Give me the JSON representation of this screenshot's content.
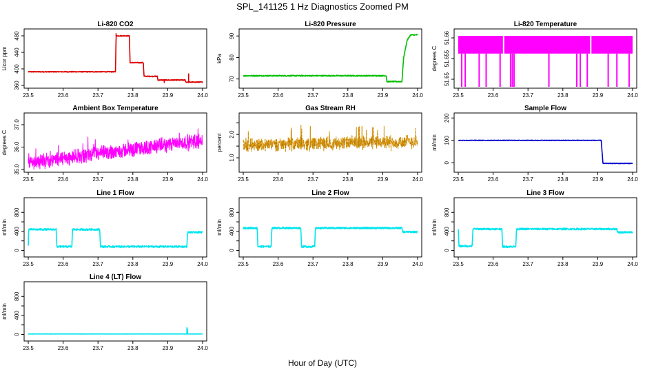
{
  "figure": {
    "title": "SPL_141125  1 Hz Diagnostics Zoomed PM",
    "xlabel": "Hour of Day (UTC)"
  },
  "chart_data": [
    {
      "type": "line",
      "title": "Li-820 CO2",
      "ylabel": "Licor ppm",
      "color": "#dd0000",
      "xlim": [
        23.5,
        24.0
      ],
      "ylim": [
        360,
        490
      ],
      "yticks": [
        360,
        400,
        440,
        480
      ],
      "xticks": [
        23.5,
        23.6,
        23.7,
        23.8,
        23.9,
        24.0
      ],
      "x": [
        23.5,
        23.75,
        23.752,
        23.79,
        23.792,
        23.83,
        23.832,
        23.87,
        23.872,
        23.95,
        23.952,
        24.0
      ],
      "y": [
        393,
        393,
        480,
        480,
        415,
        415,
        382,
        382,
        373,
        373,
        368,
        368
      ],
      "noise": 1,
      "spikes": [
        [
          23.66,
          395
        ],
        [
          23.752,
          486
        ],
        [
          23.89,
          366
        ],
        [
          23.96,
          389
        ]
      ]
    },
    {
      "type": "line",
      "title": "Li-820 Pressure",
      "ylabel": "kPa",
      "color": "#00c000",
      "xlim": [
        23.5,
        24.0
      ],
      "ylim": [
        67,
        92
      ],
      "yticks": [
        70,
        80,
        90
      ],
      "xticks": [
        23.5,
        23.6,
        23.7,
        23.8,
        23.9,
        24.0
      ],
      "x": [
        23.5,
        23.91,
        23.912,
        23.955,
        23.96,
        23.97,
        23.98,
        24.0
      ],
      "y": [
        71.5,
        71.5,
        68.8,
        68.8,
        80,
        88,
        90.5,
        90.5
      ],
      "noise": 0.25,
      "spikes": []
    },
    {
      "type": "band",
      "title": "Li-820 Temperature",
      "ylabel": "degrees C",
      "color": "#ff00ff",
      "xlim": [
        23.5,
        24.0
      ],
      "ylim": [
        51.6485,
        51.6615
      ],
      "yticks": [
        51.65,
        51.655,
        51.66
      ],
      "ytick_labels": [
        "51.65",
        "51.655",
        "51.66"
      ],
      "xticks": [
        23.5,
        23.6,
        23.7,
        23.8,
        23.9,
        24.0
      ],
      "band": [
        51.6562,
        51.6605
      ],
      "gaps": [
        23.63,
        23.88
      ],
      "drops": [
        23.51,
        23.52,
        23.56,
        23.58,
        23.62,
        23.65,
        23.655,
        23.66,
        23.76,
        23.84,
        23.85,
        23.87,
        23.93,
        23.955,
        23.99
      ]
    },
    {
      "type": "line",
      "title": "Ambient Box Temperature",
      "ylabel": "degrees C",
      "color": "#ff00ff",
      "xlim": [
        23.5,
        24.0
      ],
      "ylim": [
        35.0,
        37.4
      ],
      "yticks": [
        35.0,
        36.0,
        37.0
      ],
      "ytick_labels": [
        "35.0",
        "36.0",
        "37.0"
      ],
      "xticks": [
        23.5,
        23.6,
        23.7,
        23.8,
        23.9,
        24.0
      ],
      "x": [
        23.5,
        23.6,
        23.7,
        23.8,
        23.9,
        24.0
      ],
      "y": [
        35.3,
        35.5,
        35.7,
        35.9,
        36.1,
        36.3
      ],
      "noise": 0.35,
      "dense": true,
      "spikes": []
    },
    {
      "type": "line",
      "title": "Gas Stream RH",
      "ylabel": "percent",
      "color": "#e69b00",
      "xlim": [
        23.5,
        24.0
      ],
      "ylim": [
        0.5,
        2.8
      ],
      "yticks": [
        1.0,
        1.5,
        2.0,
        2.5
      ],
      "ytick_labels": [
        "1.0",
        "",
        "2.0",
        ""
      ],
      "xticks": [
        23.5,
        23.6,
        23.7,
        23.8,
        23.9,
        24.0
      ],
      "x": [
        23.5,
        24.0
      ],
      "y": [
        1.55,
        1.7
      ],
      "noise": 0.3,
      "dense": true,
      "dotted": true,
      "spikes": []
    },
    {
      "type": "line",
      "title": "Sample Flow",
      "ylabel": "ml/min",
      "color": "#0000cc",
      "xlim": [
        23.5,
        24.0
      ],
      "ylim": [
        -30,
        210
      ],
      "yticks": [
        0,
        100,
        200
      ],
      "xticks": [
        23.5,
        23.6,
        23.7,
        23.8,
        23.9,
        24.0
      ],
      "x": [
        23.5,
        23.91,
        23.915,
        24.0
      ],
      "y": [
        100,
        100,
        -3,
        -3
      ],
      "noise": 1.2,
      "spikes": []
    },
    {
      "type": "line",
      "title": "Line 1 Flow",
      "ylabel": "ml/min",
      "color": "#00e5ee",
      "xlim": [
        23.5,
        24.0
      ],
      "ylim": [
        -80,
        1050
      ],
      "yticks": [
        0,
        200,
        400,
        600,
        800
      ],
      "ytick_labels": [
        "0",
        "400",
        "800"
      ],
      "ytick_show": [
        0,
        400,
        800
      ],
      "xticks": [
        23.5,
        23.6,
        23.7,
        23.8,
        23.9,
        24.0
      ],
      "x": [
        23.5,
        23.501,
        23.58,
        23.582,
        23.625,
        23.627,
        23.705,
        23.707,
        23.955,
        23.957,
        24.0
      ],
      "y": [
        90,
        440,
        440,
        80,
        80,
        440,
        440,
        80,
        80,
        380,
        380
      ],
      "noise": 18,
      "spikes": []
    },
    {
      "type": "line",
      "title": "Line 2 Flow",
      "ylabel": "ml/min",
      "color": "#00e5ee",
      "xlim": [
        23.5,
        24.0
      ],
      "ylim": [
        -80,
        1050
      ],
      "yticks": [
        0,
        200,
        400,
        600,
        800
      ],
      "ytick_labels": [
        "0",
        "400",
        "800"
      ],
      "ytick_show": [
        0,
        400,
        800
      ],
      "xticks": [
        23.5,
        23.6,
        23.7,
        23.8,
        23.9,
        24.0
      ],
      "x": [
        23.5,
        23.54,
        23.542,
        23.58,
        23.582,
        23.665,
        23.667,
        23.705,
        23.707,
        23.955,
        23.957,
        24.0
      ],
      "y": [
        470,
        470,
        80,
        80,
        470,
        470,
        80,
        80,
        470,
        470,
        390,
        390
      ],
      "noise": 18,
      "spikes": []
    },
    {
      "type": "line",
      "title": "Line 3 Flow",
      "ylabel": "ml/min",
      "color": "#00e5ee",
      "xlim": [
        23.5,
        24.0
      ],
      "ylim": [
        -80,
        1050
      ],
      "yticks": [
        0,
        200,
        400,
        600,
        800
      ],
      "ytick_labels": [
        "0",
        "400",
        "800"
      ],
      "ytick_show": [
        0,
        400,
        800
      ],
      "xticks": [
        23.5,
        23.6,
        23.7,
        23.8,
        23.9,
        24.0
      ],
      "x": [
        23.5,
        23.502,
        23.54,
        23.542,
        23.625,
        23.627,
        23.665,
        23.667,
        23.955,
        23.957,
        24.0
      ],
      "y": [
        450,
        90,
        90,
        450,
        450,
        80,
        80,
        450,
        450,
        380,
        380
      ],
      "noise": 18,
      "spikes": []
    },
    {
      "type": "line",
      "title": "Line 4 (LT) Flow",
      "ylabel": "ml/min",
      "color": "#00e5ee",
      "xlim": [
        23.5,
        24.0
      ],
      "ylim": [
        -80,
        1050
      ],
      "yticks": [
        0,
        200,
        400,
        600,
        800
      ],
      "ytick_labels": [
        "0",
        "400",
        "800"
      ],
      "ytick_show": [
        0,
        400,
        800
      ],
      "xticks": [
        23.5,
        23.6,
        23.7,
        23.8,
        23.9,
        24.0
      ],
      "x": [
        23.5,
        24.0
      ],
      "y": [
        10,
        10
      ],
      "noise": 2,
      "spikes": [
        [
          23.955,
          150
        ],
        [
          23.957,
          120
        ]
      ]
    }
  ]
}
